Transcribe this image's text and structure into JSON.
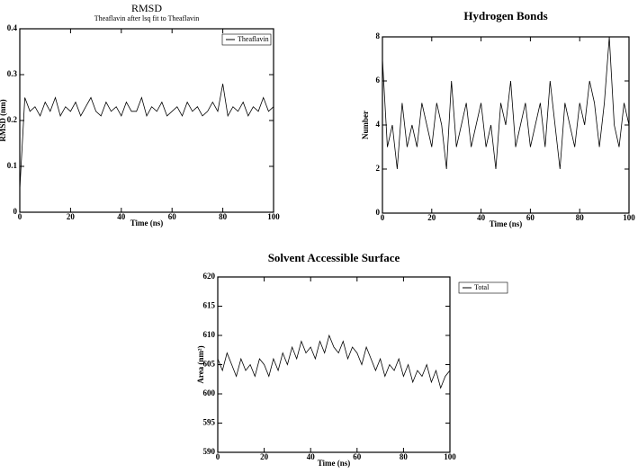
{
  "chart_data": [
    {
      "type": "line",
      "title": "RMSD",
      "subtitle": "Theaflavin after lsq fit to Theaflavin",
      "x_label": "Time (ns)",
      "y_label": "RMSD (nm)",
      "x": [
        0,
        2,
        4,
        6,
        8,
        10,
        12,
        14,
        16,
        18,
        20,
        22,
        24,
        26,
        28,
        30,
        32,
        34,
        36,
        38,
        40,
        42,
        44,
        46,
        48,
        50,
        52,
        54,
        56,
        58,
        60,
        62,
        64,
        66,
        68,
        70,
        72,
        74,
        76,
        78,
        80,
        82,
        84,
        86,
        88,
        90,
        92,
        94,
        96,
        98,
        100
      ],
      "series": [
        {
          "name": "Theaflavin",
          "color": "#000000",
          "values": [
            0.05,
            0.25,
            0.22,
            0.23,
            0.21,
            0.24,
            0.22,
            0.25,
            0.21,
            0.23,
            0.22,
            0.24,
            0.21,
            0.23,
            0.25,
            0.22,
            0.21,
            0.24,
            0.22,
            0.23,
            0.21,
            0.24,
            0.22,
            0.22,
            0.25,
            0.21,
            0.23,
            0.22,
            0.24,
            0.21,
            0.22,
            0.23,
            0.21,
            0.24,
            0.22,
            0.23,
            0.21,
            0.22,
            0.24,
            0.22,
            0.28,
            0.21,
            0.23,
            0.22,
            0.24,
            0.21,
            0.23,
            0.22,
            0.25,
            0.22,
            0.23
          ]
        }
      ],
      "xlim": [
        0,
        100
      ],
      "xticks": [
        0,
        20,
        40,
        60,
        80,
        100
      ],
      "ylim": [
        0,
        0.4
      ],
      "yticks": [
        0,
        0.1,
        0.2,
        0.3,
        0.4
      ],
      "legend": "upper right"
    },
    {
      "type": "line",
      "title": "Hydrogen Bonds",
      "x_label": "Time (ns)",
      "y_label": "Number",
      "x": [
        0,
        2,
        4,
        6,
        8,
        10,
        12,
        14,
        16,
        18,
        20,
        22,
        24,
        26,
        28,
        30,
        32,
        34,
        36,
        38,
        40,
        42,
        44,
        46,
        48,
        50,
        52,
        54,
        56,
        58,
        60,
        62,
        64,
        66,
        68,
        70,
        72,
        74,
        76,
        78,
        80,
        82,
        84,
        86,
        88,
        90,
        92,
        94,
        96,
        98,
        100
      ],
      "values": [
        7,
        3,
        4,
        2,
        5,
        3,
        4,
        3,
        5,
        4,
        3,
        5,
        4,
        2,
        6,
        3,
        4,
        5,
        3,
        4,
        5,
        3,
        4,
        2,
        5,
        4,
        6,
        3,
        4,
        5,
        3,
        4,
        5,
        3,
        6,
        4,
        2,
        5,
        4,
        3,
        5,
        4,
        6,
        5,
        3,
        5,
        8,
        4,
        3,
        5,
        4
      ],
      "color": "#000000",
      "xlim": [
        0,
        100
      ],
      "xticks": [
        0,
        20,
        40,
        60,
        80,
        100
      ],
      "ylim": [
        0,
        8
      ],
      "yticks": [
        0,
        2,
        4,
        6,
        8
      ]
    },
    {
      "type": "line",
      "title": "Solvent Accessible Surface",
      "x_label": "Time (ns)",
      "y_label": "Area (nm²)",
      "x": [
        0,
        2,
        4,
        6,
        8,
        10,
        12,
        14,
        16,
        18,
        20,
        22,
        24,
        26,
        28,
        30,
        32,
        34,
        36,
        38,
        40,
        42,
        44,
        46,
        48,
        50,
        52,
        54,
        56,
        58,
        60,
        62,
        64,
        66,
        68,
        70,
        72,
        74,
        76,
        78,
        80,
        82,
        84,
        86,
        88,
        90,
        92,
        94,
        96,
        98,
        100
      ],
      "series": [
        {
          "name": "Total",
          "color": "#000000",
          "values": [
            606,
            604,
            607,
            605,
            603,
            606,
            604,
            605,
            603,
            606,
            605,
            603,
            606,
            604,
            607,
            605,
            608,
            606,
            609,
            607,
            608,
            606,
            609,
            607,
            610,
            608,
            607,
            609,
            606,
            608,
            607,
            605,
            608,
            606,
            604,
            606,
            603,
            605,
            604,
            606,
            603,
            605,
            602,
            604,
            603,
            605,
            602,
            604,
            601,
            603,
            604
          ]
        }
      ],
      "xlim": [
        0,
        100
      ],
      "xticks": [
        0,
        20,
        40,
        60,
        80,
        100
      ],
      "ylim": [
        590,
        620
      ],
      "yticks": [
        590,
        595,
        600,
        605,
        610,
        615,
        620
      ],
      "legend": "right"
    }
  ]
}
